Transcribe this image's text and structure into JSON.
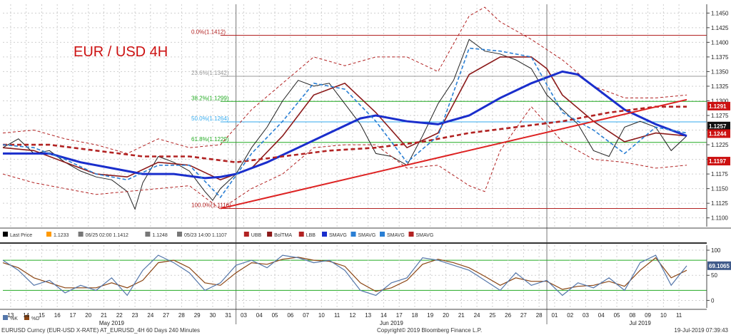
{
  "chart_data": {
    "type": "line",
    "title": "EUR / USD 4H",
    "footer": {
      "ticker": "EURUSD Curncy (EUR-USD X-RATE) AT_EURUSD_4H 60 Days 240 Minutes",
      "copyright": "Copyright© 2019 Bloomberg Finance L.P.",
      "timestamp": "19-Jul-2019 07:39:43"
    },
    "price_axis": {
      "ylim": [
        1.1085,
        1.1465
      ],
      "ticks": [
        1.11,
        1.1125,
        1.115,
        1.1175,
        1.12,
        1.1225,
        1.125,
        1.1275,
        1.13,
        1.1325,
        1.135,
        1.1375,
        1.14,
        1.1425,
        1.145
      ]
    },
    "osc_axis": {
      "ylim": [
        -15,
        110
      ],
      "ticks": [
        0,
        50,
        100
      ]
    },
    "x_range": [
      0,
      88
    ],
    "date_labels": [
      {
        "x": 1,
        "label": "13"
      },
      {
        "x": 3,
        "label": "14"
      },
      {
        "x": 5,
        "label": "15"
      },
      {
        "x": 7,
        "label": "16"
      },
      {
        "x": 9,
        "label": "17"
      },
      {
        "x": 11,
        "label": "20"
      },
      {
        "x": 13,
        "label": "21"
      },
      {
        "x": 15,
        "label": "22"
      },
      {
        "x": 17,
        "label": "23"
      },
      {
        "x": 19,
        "label": "24"
      },
      {
        "x": 21,
        "label": "27"
      },
      {
        "x": 23,
        "label": "28"
      },
      {
        "x": 25,
        "label": "29"
      },
      {
        "x": 27,
        "label": "30"
      },
      {
        "x": 29,
        "label": "31"
      },
      {
        "x": 31,
        "label": "03"
      },
      {
        "x": 33,
        "label": "04"
      },
      {
        "x": 35,
        "label": "05"
      },
      {
        "x": 37,
        "label": "06"
      },
      {
        "x": 39,
        "label": "07"
      },
      {
        "x": 41,
        "label": "10"
      },
      {
        "x": 43,
        "label": "11"
      },
      {
        "x": 45,
        "label": "12"
      },
      {
        "x": 47,
        "label": "13"
      },
      {
        "x": 49,
        "label": "14"
      },
      {
        "x": 51,
        "label": "17"
      },
      {
        "x": 53,
        "label": "18"
      },
      {
        "x": 55,
        "label": "19"
      },
      {
        "x": 57,
        "label": "20"
      },
      {
        "x": 59,
        "label": "21"
      },
      {
        "x": 61,
        "label": "24"
      },
      {
        "x": 63,
        "label": "25"
      },
      {
        "x": 65,
        "label": "26"
      },
      {
        "x": 67,
        "label": "27"
      },
      {
        "x": 69,
        "label": "28"
      },
      {
        "x": 71,
        "label": "01"
      },
      {
        "x": 73,
        "label": "02"
      },
      {
        "x": 75,
        "label": "03"
      },
      {
        "x": 77,
        "label": "04"
      },
      {
        "x": 79,
        "label": "05"
      },
      {
        "x": 81,
        "label": "08"
      },
      {
        "x": 83,
        "label": "09"
      },
      {
        "x": 85,
        "label": "10"
      },
      {
        "x": 87,
        "label": "11"
      }
    ],
    "month_labels": [
      {
        "x": 14,
        "label": "May 2019"
      },
      {
        "x": 50,
        "label": "Jun 2019"
      },
      {
        "x": 82,
        "label": "Jul 2019"
      }
    ],
    "month_separators": [
      30,
      70
    ],
    "fib_levels": [
      {
        "label": "0.0%(1.1412)",
        "value": 1.1412,
        "color": "#b22222"
      },
      {
        "label": "23.6%(1.1342)",
        "value": 1.1342,
        "color": "#999999"
      },
      {
        "label": "38.2%(1.1299)",
        "value": 1.1299,
        "color": "#22aa22"
      },
      {
        "label": "50.0%(1.1264)",
        "value": 1.1264,
        "color": "#33aaee"
      },
      {
        "label": "61.8%(1.1229)",
        "value": 1.1229,
        "color": "#22aa22"
      },
      {
        "label": "100.0%(1.1116)",
        "value": 1.1116,
        "color": "#b22222"
      }
    ],
    "price_tags": [
      {
        "label": "1.1291",
        "value": 1.1291,
        "bg": "#cc1111"
      },
      {
        "label": "1.1257",
        "value": 1.1257,
        "bg": "#111111"
      },
      {
        "label": "1.1244",
        "value": 1.1244,
        "bg": "#cc1111"
      },
      {
        "label": "1.1197",
        "value": 1.1197,
        "bg": "#cc1111"
      }
    ],
    "osc_tag": {
      "label": "69.1065",
      "value": 69.1
    },
    "legend": [
      {
        "swatch": "#000000",
        "label": "Last Price"
      },
      {
        "swatch": "#ff9900",
        "label": "1.1233"
      },
      {
        "swatch": "#777777",
        "label": "06/25 02:00 1.1412"
      },
      {
        "swatch": "#777777",
        "label": "1.1248"
      },
      {
        "swatch": "#777777",
        "label": "05/23 14:00 1.1107"
      },
      {
        "swatch": "#b22222",
        "label": "UBB"
      },
      {
        "swatch": "#8b1a1a",
        "label": "BolTMA"
      },
      {
        "swatch": "#b22222",
        "label": "LBB"
      },
      {
        "swatch": "#1a2ecc",
        "label": "SMAVG"
      },
      {
        "swatch": "#2a7fd4",
        "label": "SMAVG"
      },
      {
        "swatch": "#2a7fd4",
        "label": "SMAVG"
      },
      {
        "swatch": "#b22222",
        "label": "SMAVG"
      }
    ],
    "osc_legend": [
      {
        "swatch": "#5577aa",
        "label": "%K"
      },
      {
        "swatch": "#8b4513",
        "label": "%D"
      }
    ],
    "trendline": {
      "x": [
        28,
        88
      ],
      "y": [
        1.1116,
        1.1302
      ],
      "color": "#dd2222"
    },
    "series": [
      {
        "name": "Last Price",
        "color": "#222222",
        "x": [
          0,
          2,
          4,
          6,
          8,
          10,
          12,
          14,
          16,
          17,
          18,
          20,
          22,
          24,
          26,
          27,
          28,
          30,
          32,
          34,
          36,
          38,
          40,
          42,
          44,
          46,
          48,
          50,
          52,
          54,
          56,
          58,
          60,
          61,
          62,
          64,
          66,
          68,
          70,
          72,
          74,
          76,
          78,
          80,
          82,
          84,
          86,
          88
        ],
        "y": [
          1.122,
          1.1235,
          1.121,
          1.1215,
          1.1195,
          1.118,
          1.117,
          1.1165,
          1.1145,
          1.1115,
          1.116,
          1.1205,
          1.1195,
          1.118,
          1.1145,
          1.113,
          1.115,
          1.1175,
          1.122,
          1.1255,
          1.13,
          1.1335,
          1.1325,
          1.133,
          1.1295,
          1.126,
          1.121,
          1.1205,
          1.119,
          1.124,
          1.1295,
          1.1335,
          1.1405,
          1.1395,
          1.1385,
          1.138,
          1.137,
          1.1355,
          1.131,
          1.1285,
          1.126,
          1.1215,
          1.1205,
          1.1255,
          1.1265,
          1.1255,
          1.1215,
          1.124
        ]
      },
      {
        "name": "UBB",
        "color": "#b22222",
        "x": [
          0,
          4,
          8,
          12,
          16,
          20,
          24,
          28,
          32,
          36,
          40,
          44,
          48,
          52,
          56,
          60,
          62,
          64,
          68,
          72,
          76,
          80,
          84,
          88
        ],
        "y": [
          1.1245,
          1.125,
          1.1235,
          1.1225,
          1.121,
          1.1235,
          1.122,
          1.1225,
          1.1285,
          1.133,
          1.1375,
          1.136,
          1.1375,
          1.1375,
          1.135,
          1.1445,
          1.146,
          1.1435,
          1.1405,
          1.137,
          1.1325,
          1.1305,
          1.1305,
          1.131
        ]
      },
      {
        "name": "LBB",
        "color": "#b22222",
        "x": [
          0,
          4,
          8,
          12,
          16,
          20,
          24,
          28,
          32,
          36,
          40,
          44,
          48,
          52,
          56,
          60,
          62,
          64,
          68,
          72,
          76,
          80,
          84,
          88
        ],
        "y": [
          1.1175,
          1.116,
          1.115,
          1.114,
          1.1145,
          1.115,
          1.1155,
          1.1115,
          1.115,
          1.1175,
          1.122,
          1.1225,
          1.1225,
          1.1185,
          1.119,
          1.1155,
          1.1145,
          1.1215,
          1.129,
          1.123,
          1.12,
          1.1195,
          1.1185,
          1.119
        ]
      },
      {
        "name": "BolTMA",
        "color": "#8b1a1a",
        "x": [
          0,
          4,
          8,
          12,
          16,
          20,
          24,
          28,
          32,
          36,
          40,
          44,
          48,
          52,
          56,
          60,
          64,
          68,
          70,
          72,
          76,
          80,
          84,
          88
        ],
        "y": [
          1.122,
          1.1215,
          1.1195,
          1.1175,
          1.117,
          1.1195,
          1.119,
          1.1165,
          1.1185,
          1.124,
          1.131,
          1.133,
          1.128,
          1.122,
          1.1245,
          1.1345,
          1.1375,
          1.1375,
          1.1355,
          1.131,
          1.1265,
          1.123,
          1.1245,
          1.124
        ]
      },
      {
        "name": "SMAVG",
        "color": "#1a2ecc",
        "x": [
          0,
          6,
          10,
          14,
          18,
          22,
          26,
          28,
          30,
          34,
          38,
          42,
          46,
          48,
          52,
          56,
          60,
          64,
          68,
          72,
          74,
          76,
          80,
          84,
          88
        ],
        "y": [
          1.121,
          1.121,
          1.1195,
          1.1185,
          1.1175,
          1.1175,
          1.1168,
          1.117,
          1.1175,
          1.1195,
          1.122,
          1.1245,
          1.127,
          1.1275,
          1.1265,
          1.126,
          1.1275,
          1.1305,
          1.133,
          1.135,
          1.1345,
          1.1325,
          1.1285,
          1.126,
          1.124
        ]
      },
      {
        "name": "SMAVG",
        "color": "#b22222",
        "x": [
          0,
          6,
          12,
          18,
          24,
          30,
          36,
          42,
          48,
          54,
          60,
          66,
          72,
          78,
          84,
          88
        ],
        "y": [
          1.1225,
          1.1225,
          1.1215,
          1.1205,
          1.1205,
          1.1195,
          1.1205,
          1.1215,
          1.122,
          1.123,
          1.1245,
          1.1255,
          1.1265,
          1.128,
          1.129,
          1.129
        ]
      },
      {
        "name": "SMAVG",
        "color": "#2a7fd4",
        "x": [
          0,
          4,
          8,
          12,
          16,
          20,
          24,
          28,
          32,
          36,
          40,
          44,
          48,
          52,
          56,
          60,
          64,
          68,
          72,
          76,
          80,
          84,
          88
        ],
        "y": [
          1.1225,
          1.122,
          1.12,
          1.1175,
          1.1165,
          1.119,
          1.119,
          1.1135,
          1.121,
          1.1265,
          1.133,
          1.132,
          1.1265,
          1.1195,
          1.124,
          1.139,
          1.1385,
          1.1375,
          1.128,
          1.125,
          1.121,
          1.1255,
          1.1245
        ]
      }
    ],
    "oscillator": {
      "k": {
        "name": "%K",
        "color": "#5577aa",
        "x": [
          0,
          2,
          4,
          6,
          8,
          10,
          12,
          14,
          16,
          18,
          20,
          22,
          24,
          26,
          28,
          30,
          32,
          34,
          36,
          38,
          40,
          42,
          44,
          46,
          48,
          50,
          52,
          54,
          56,
          58,
          60,
          62,
          64,
          66,
          68,
          70,
          72,
          74,
          76,
          78,
          80,
          82,
          84,
          86,
          88
        ],
        "y": [
          80,
          60,
          30,
          40,
          15,
          30,
          20,
          45,
          10,
          60,
          90,
          75,
          55,
          20,
          35,
          70,
          80,
          65,
          90,
          85,
          75,
          80,
          60,
          20,
          10,
          35,
          45,
          85,
          80,
          70,
          60,
          40,
          20,
          55,
          30,
          40,
          10,
          35,
          25,
          45,
          20,
          75,
          90,
          30,
          69
        ]
      },
      "d": {
        "name": "%D",
        "color": "#8b4513",
        "x": [
          0,
          2,
          4,
          6,
          8,
          10,
          12,
          14,
          16,
          18,
          20,
          22,
          24,
          26,
          28,
          30,
          32,
          34,
          36,
          38,
          40,
          42,
          44,
          46,
          48,
          50,
          52,
          54,
          56,
          58,
          60,
          62,
          64,
          66,
          68,
          70,
          72,
          74,
          76,
          78,
          80,
          82,
          84,
          86,
          88
        ],
        "y": [
          75,
          65,
          45,
          35,
          25,
          25,
          25,
          35,
          25,
          40,
          75,
          80,
          65,
          35,
          30,
          55,
          75,
          72,
          82,
          86,
          80,
          78,
          68,
          35,
          18,
          25,
          40,
          72,
          82,
          75,
          65,
          48,
          30,
          45,
          38,
          38,
          22,
          28,
          30,
          38,
          28,
          60,
          85,
          45,
          60
        ]
      }
    }
  }
}
